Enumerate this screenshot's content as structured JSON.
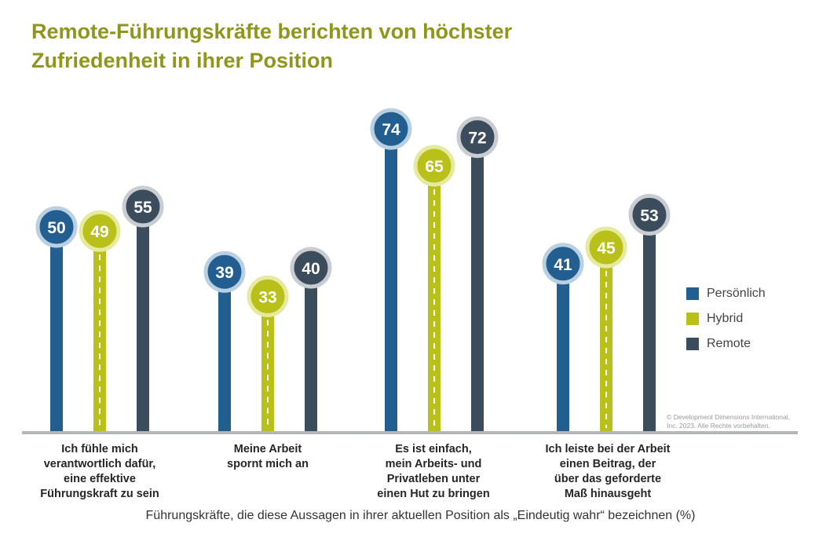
{
  "chart_data": {
    "type": "bar",
    "title_lines": [
      "Remote-Führungskräfte berichten von höchster",
      "Zufriedenheit in ihrer Position"
    ],
    "categories": [
      [
        "Ich fühle mich",
        "verantwortlich dafür,",
        "eine effektive",
        "Führungskraft zu sein"
      ],
      [
        "Meine Arbeit",
        "spornt mich an"
      ],
      [
        "Es ist einfach,",
        "mein Arbeits- und",
        "Privatleben unter",
        "einen Hut zu bringen"
      ],
      [
        "Ich leiste bei der Arbeit",
        "einen Beitrag, der",
        "über das geforderte",
        "Maß hinausgeht"
      ]
    ],
    "series": [
      {
        "name": "Persönlich",
        "color": "#225e8f",
        "values": [
          50,
          39,
          74,
          41
        ]
      },
      {
        "name": "Hybrid",
        "color": "#b9c01a",
        "values": [
          49,
          33,
          65,
          45
        ]
      },
      {
        "name": "Remote",
        "color": "#3b4d5c",
        "values": [
          55,
          40,
          72,
          53
        ]
      }
    ],
    "xlabel": "Führungskräfte, die diese Aussagen in ihrer aktuellen Position als „Eindeutig wahr“ bezeichnen (%)",
    "ylim": [
      0,
      100
    ],
    "copyright": [
      "© Development Dimensions International,",
      "Inc. 2023. Alle Rechte vorbehalten."
    ]
  }
}
